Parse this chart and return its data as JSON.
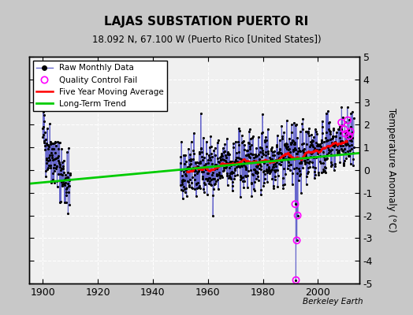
{
  "title": "LAJAS SUBSTATION PUERTO RI",
  "subtitle": "18.092 N, 67.100 W (Puerto Rico [United States])",
  "ylabel": "Temperature Anomaly (°C)",
  "attribution": "Berkeley Earth",
  "ylim": [
    -5,
    5
  ],
  "xlim": [
    1895,
    2015
  ],
  "xticks": [
    1900,
    1920,
    1940,
    1960,
    1980,
    2000
  ],
  "yticks": [
    -5,
    -4,
    -3,
    -2,
    -1,
    0,
    1,
    2,
    3,
    4,
    5
  ],
  "fig_bg_color": "#c8c8c8",
  "plot_bg_color": "#f0f0f0",
  "raw_color": "#6666cc",
  "ma_color": "#ff0000",
  "trend_color": "#00cc00",
  "qc_color": "#ff00ff",
  "seed": 42
}
